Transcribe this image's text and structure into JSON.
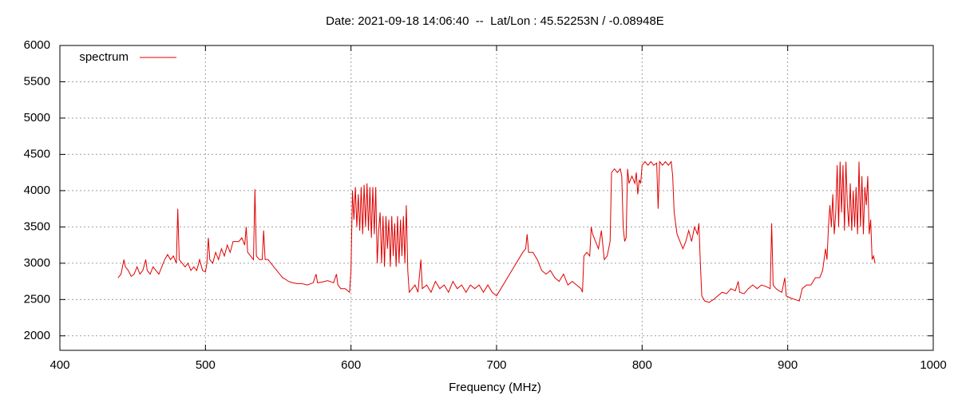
{
  "chart_data": {
    "type": "line",
    "title": "Date: 2021-09-18 14:06:40  --  Lat/Lon : 45.52253N / -0.08948E",
    "xlabel": "Frequency (MHz)",
    "xlim": [
      400,
      1000
    ],
    "xticks": [
      400,
      500,
      600,
      700,
      800,
      900,
      1000
    ],
    "ylim": [
      1800,
      6000
    ],
    "yticks": [
      2000,
      2500,
      3000,
      3500,
      4000,
      4500,
      5000,
      5500,
      6000
    ],
    "grid": true,
    "legend": "top-left",
    "x": [
      440,
      442,
      443,
      444,
      445,
      447,
      449,
      451,
      453,
      455,
      457,
      459,
      460,
      462,
      464,
      466,
      468,
      470,
      472,
      474,
      476,
      478,
      480,
      481,
      482,
      484,
      486,
      488,
      490,
      492,
      494,
      496,
      498,
      500,
      501,
      502,
      503,
      505,
      507,
      509,
      511,
      513,
      515,
      517,
      519,
      521,
      523,
      525,
      527,
      528,
      529,
      531,
      533,
      534,
      535,
      537,
      539,
      540,
      541,
      543,
      545,
      547,
      549,
      551,
      553,
      555,
      557,
      560,
      563,
      566,
      570,
      574,
      576,
      577,
      580,
      584,
      588,
      590,
      591,
      593,
      596,
      599,
      600,
      601,
      602,
      603,
      604,
      605,
      606,
      607,
      608,
      609,
      610,
      611,
      612,
      613,
      614,
      615,
      616,
      617,
      618,
      619,
      620,
      621,
      622,
      623,
      624,
      625,
      626,
      627,
      628,
      629,
      630,
      631,
      632,
      633,
      634,
      635,
      636,
      637,
      638,
      639,
      640,
      642,
      644,
      646,
      648,
      649,
      652,
      655,
      658,
      661,
      664,
      667,
      670,
      673,
      676,
      679,
      682,
      685,
      688,
      691,
      694,
      697,
      700,
      703,
      706,
      709,
      712,
      715,
      718,
      720,
      721,
      722,
      725,
      728,
      731,
      734,
      737,
      740,
      743,
      746,
      749,
      752,
      755,
      758,
      759,
      760,
      762,
      764,
      765,
      766,
      768,
      770,
      772,
      774,
      776,
      778,
      779,
      781,
      783,
      785,
      786,
      787,
      788,
      789,
      790,
      791,
      793,
      795,
      796,
      797,
      798,
      799,
      800,
      802,
      804,
      806,
      808,
      810,
      811,
      812,
      814,
      816,
      818,
      820,
      821,
      822,
      824,
      826,
      828,
      830,
      832,
      834,
      836,
      838,
      839,
      840,
      841,
      843,
      846,
      849,
      852,
      855,
      858,
      861,
      864,
      866,
      867,
      870,
      873,
      876,
      879,
      882,
      885,
      888,
      889,
      890,
      892,
      894,
      896,
      898,
      899,
      902,
      905,
      908,
      910,
      913,
      916,
      919,
      922,
      924,
      926,
      927,
      928,
      929,
      930,
      931,
      932,
      933,
      934,
      935,
      936,
      937,
      938,
      939,
      940,
      941,
      942,
      943,
      944,
      945,
      946,
      947,
      948,
      949,
      950,
      951,
      952,
      953,
      954,
      955,
      956,
      957,
      958,
      959,
      960
    ],
    "series": [
      {
        "name": "spectrum",
        "color": "#e00000",
        "values": [
          2800,
          2850,
          2950,
          3050,
          2950,
          2900,
          2820,
          2850,
          2950,
          2850,
          2900,
          3050,
          2900,
          2850,
          2950,
          2900,
          2850,
          2950,
          3050,
          3120,
          3050,
          3100,
          3000,
          3750,
          3050,
          3000,
          2950,
          3000,
          2900,
          2950,
          2900,
          3050,
          2900,
          2880,
          3000,
          3350,
          3050,
          3000,
          3150,
          3050,
          3200,
          3100,
          3250,
          3150,
          3300,
          3300,
          3300,
          3350,
          3250,
          3500,
          3150,
          3100,
          3050,
          4020,
          3100,
          3050,
          3050,
          3450,
          3050,
          3050,
          3000,
          2950,
          2900,
          2850,
          2800,
          2780,
          2750,
          2730,
          2720,
          2720,
          2700,
          2730,
          2850,
          2730,
          2740,
          2760,
          2730,
          2850,
          2700,
          2650,
          2650,
          2600,
          2900,
          4000,
          3600,
          4050,
          3500,
          3950,
          3450,
          4050,
          3400,
          4080,
          3500,
          4100,
          3450,
          4050,
          3350,
          4050,
          3400,
          4050,
          3000,
          3450,
          3700,
          3000,
          3650,
          2950,
          3650,
          3200,
          3600,
          2950,
          3650,
          3100,
          3550,
          2950,
          3650,
          3000,
          3600,
          3100,
          3650,
          3000,
          3800,
          2900,
          2600,
          2650,
          2700,
          2600,
          3050,
          2650,
          2700,
          2600,
          2750,
          2650,
          2700,
          2600,
          2750,
          2650,
          2700,
          2600,
          2700,
          2650,
          2700,
          2600,
          2700,
          2600,
          2550,
          2650,
          2750,
          2850,
          2950,
          3050,
          3150,
          3200,
          3400,
          3150,
          3150,
          3050,
          2900,
          2850,
          2900,
          2800,
          2750,
          2850,
          2700,
          2750,
          2700,
          2650,
          2600,
          3100,
          3150,
          3100,
          3500,
          3400,
          3300,
          3200,
          3450,
          3050,
          3100,
          3300,
          4250,
          4300,
          4250,
          4300,
          4200,
          3500,
          3300,
          3350,
          4300,
          4100,
          4200,
          4100,
          4250,
          3950,
          4150,
          4100,
          4350,
          4400,
          4350,
          4400,
          4350,
          4380,
          3750,
          4400,
          4350,
          4400,
          4350,
          4400,
          4200,
          3700,
          3400,
          3300,
          3200,
          3300,
          3450,
          3300,
          3500,
          3400,
          3550,
          3000,
          2550,
          2480,
          2460,
          2500,
          2550,
          2600,
          2580,
          2650,
          2620,
          2750,
          2600,
          2580,
          2650,
          2700,
          2650,
          2700,
          2680,
          2650,
          3550,
          2700,
          2650,
          2620,
          2600,
          2800,
          2550,
          2520,
          2500,
          2480,
          2650,
          2700,
          2700,
          2800,
          2800,
          2900,
          3200,
          3050,
          3500,
          3800,
          3500,
          3950,
          3400,
          3700,
          4350,
          3500,
          4400,
          3700,
          4350,
          3450,
          4400,
          3800,
          3500,
          4100,
          3450,
          4000,
          3500,
          4050,
          3400,
          4400,
          3500,
          4200,
          3400,
          4050,
          3800,
          4200,
          3400,
          3600,
          3050,
          3100,
          3000
        ]
      }
    ]
  }
}
